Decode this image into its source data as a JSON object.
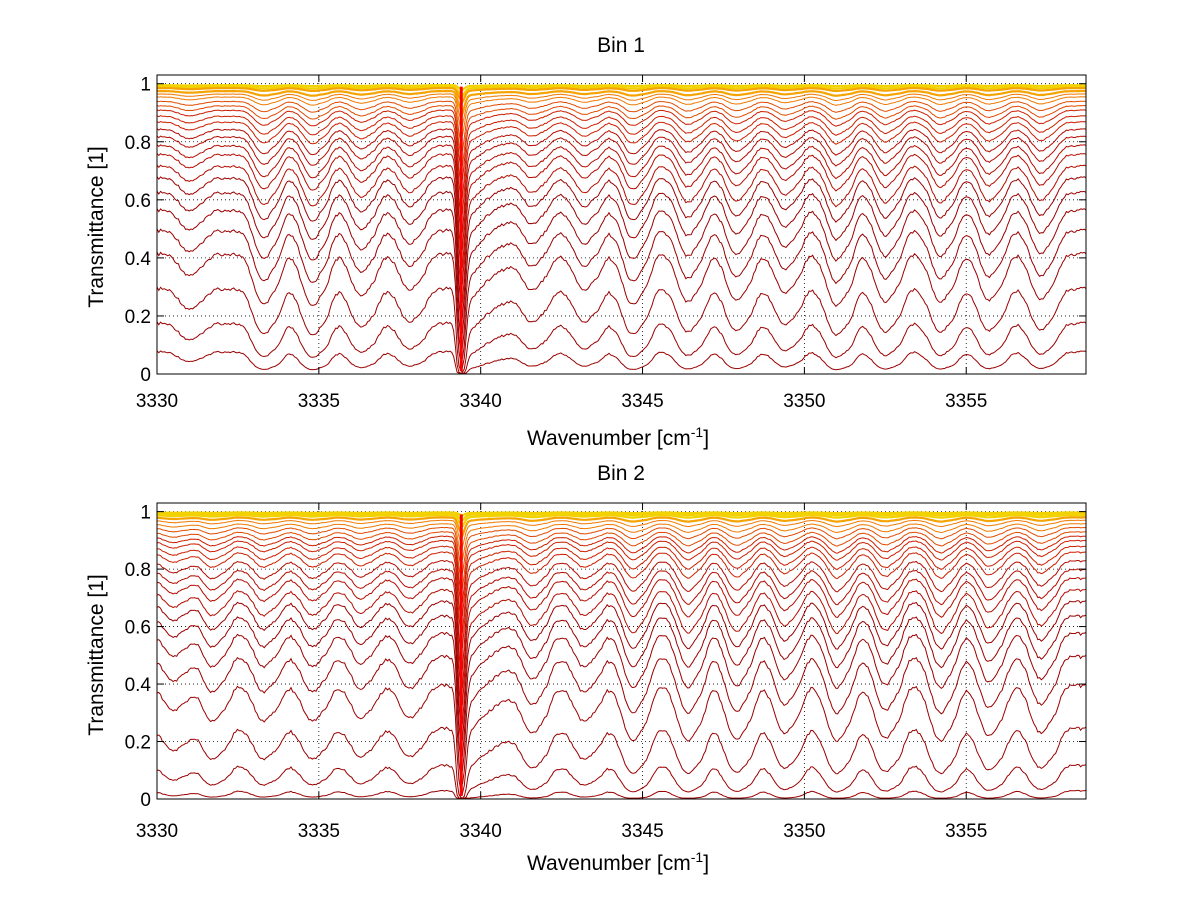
{
  "chart_data": [
    {
      "type": "line",
      "title": "Bin 1",
      "xlabel": "Wavenumber [cm",
      "xlabel_sup": "-1",
      "xlabel_end": "]",
      "ylabel": "Transmittance [1]",
      "xlim": [
        3330,
        3358.7
      ],
      "ylim": [
        0,
        1.03
      ],
      "xticks": [
        3330,
        3335,
        3340,
        3345,
        3350,
        3355
      ],
      "xtick_labels": [
        "3330",
        "3335",
        "3340",
        "3345",
        "3350",
        "3355"
      ],
      "yticks": [
        0,
        0.2,
        0.4,
        0.6,
        0.8,
        1
      ],
      "ytick_labels": [
        "0",
        "0.2",
        "0.4",
        "0.6",
        "0.8",
        "1"
      ],
      "grid": true,
      "series_description": "family of spectra with increasing path length, colored yellow (high transmittance) to dark red (low)",
      "n_series": 24,
      "series_baselines": [
        0.995,
        0.99,
        0.985,
        0.975,
        0.965,
        0.955,
        0.94,
        0.925,
        0.91,
        0.89,
        0.87,
        0.845,
        0.82,
        0.79,
        0.76,
        0.72,
        0.68,
        0.63,
        0.57,
        0.5,
        0.42,
        0.3,
        0.18,
        0.08
      ],
      "strong_line": {
        "x": 3339.4,
        "depth": 1.0
      },
      "absorption_lines": [
        {
          "x": 3331.0,
          "depth": 0.25
        },
        {
          "x": 3333.3,
          "depth": 0.7
        },
        {
          "x": 3334.8,
          "depth": 0.72
        },
        {
          "x": 3336.3,
          "depth": 0.55
        },
        {
          "x": 3337.8,
          "depth": 0.45
        },
        {
          "x": 3341.6,
          "depth": 0.4
        },
        {
          "x": 3343.2,
          "depth": 0.45
        },
        {
          "x": 3344.7,
          "depth": 0.7
        },
        {
          "x": 3346.4,
          "depth": 0.65
        },
        {
          "x": 3347.9,
          "depth": 0.62
        },
        {
          "x": 3349.4,
          "depth": 0.5
        },
        {
          "x": 3351.0,
          "depth": 0.72
        },
        {
          "x": 3352.5,
          "depth": 0.65
        },
        {
          "x": 3354.2,
          "depth": 0.65
        },
        {
          "x": 3355.7,
          "depth": 0.62
        },
        {
          "x": 3357.3,
          "depth": 0.6
        }
      ]
    },
    {
      "type": "line",
      "title": "Bin 2",
      "xlabel": "Wavenumber [cm",
      "xlabel_sup": "-1",
      "xlabel_end": "]",
      "ylabel": "Transmittance [1]",
      "xlim": [
        3330,
        3358.7
      ],
      "ylim": [
        0,
        1.03
      ],
      "xticks": [
        3330,
        3335,
        3340,
        3345,
        3350,
        3355
      ],
      "xtick_labels": [
        "3330",
        "3335",
        "3340",
        "3345",
        "3350",
        "3355"
      ],
      "yticks": [
        0,
        0.2,
        0.4,
        0.6,
        0.8,
        1
      ],
      "ytick_labels": [
        "0",
        "0.2",
        "0.4",
        "0.6",
        "0.8",
        "1"
      ],
      "grid": true,
      "series_description": "family of spectra with increasing path length, colored yellow (high transmittance) to dark red (low)",
      "n_series": 24,
      "series_baselines": [
        0.997,
        0.993,
        0.988,
        0.98,
        0.97,
        0.958,
        0.945,
        0.93,
        0.915,
        0.9,
        0.88,
        0.86,
        0.83,
        0.8,
        0.77,
        0.73,
        0.69,
        0.64,
        0.58,
        0.5,
        0.4,
        0.25,
        0.12,
        0.03
      ],
      "strong_line": {
        "x": 3339.4,
        "depth": 1.0
      },
      "absorption_lines": [
        {
          "x": 3330.5,
          "depth": 0.3
        },
        {
          "x": 3331.7,
          "depth": 0.45
        },
        {
          "x": 3333.3,
          "depth": 0.45
        },
        {
          "x": 3334.8,
          "depth": 0.45
        },
        {
          "x": 3336.3,
          "depth": 0.4
        },
        {
          "x": 3337.8,
          "depth": 0.4
        },
        {
          "x": 3341.6,
          "depth": 0.6
        },
        {
          "x": 3343.2,
          "depth": 0.45
        },
        {
          "x": 3344.7,
          "depth": 0.8
        },
        {
          "x": 3346.4,
          "depth": 0.8
        },
        {
          "x": 3347.9,
          "depth": 0.78
        },
        {
          "x": 3349.4,
          "depth": 0.65
        },
        {
          "x": 3351.0,
          "depth": 0.8
        },
        {
          "x": 3352.5,
          "depth": 0.75
        },
        {
          "x": 3354.2,
          "depth": 0.8
        },
        {
          "x": 3355.7,
          "depth": 0.7
        },
        {
          "x": 3357.3,
          "depth": 0.65
        }
      ]
    }
  ]
}
